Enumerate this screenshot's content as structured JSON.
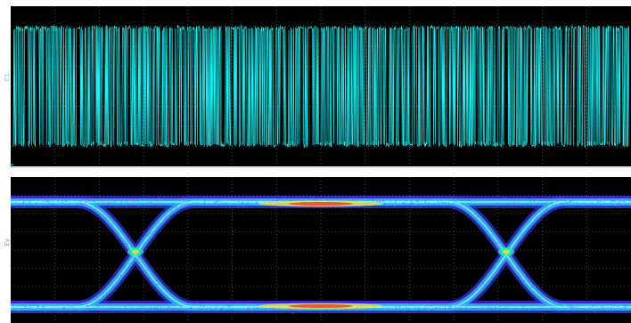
{
  "window": {
    "top_channel_label": "C1",
    "bottom_channel_label": "Ey",
    "top_marker": "1",
    "trigger_marker": "T"
  },
  "colors": {
    "trace": "#19f2f2",
    "eye_low": "#3a2bd6",
    "eye_mid": "#28b8f0",
    "eye_high": "#f03020",
    "grid": "#7a7a7a",
    "background": "#000000"
  },
  "icons": [
    "channel-1-marker-icon",
    "trigger-marker-icon"
  ]
}
